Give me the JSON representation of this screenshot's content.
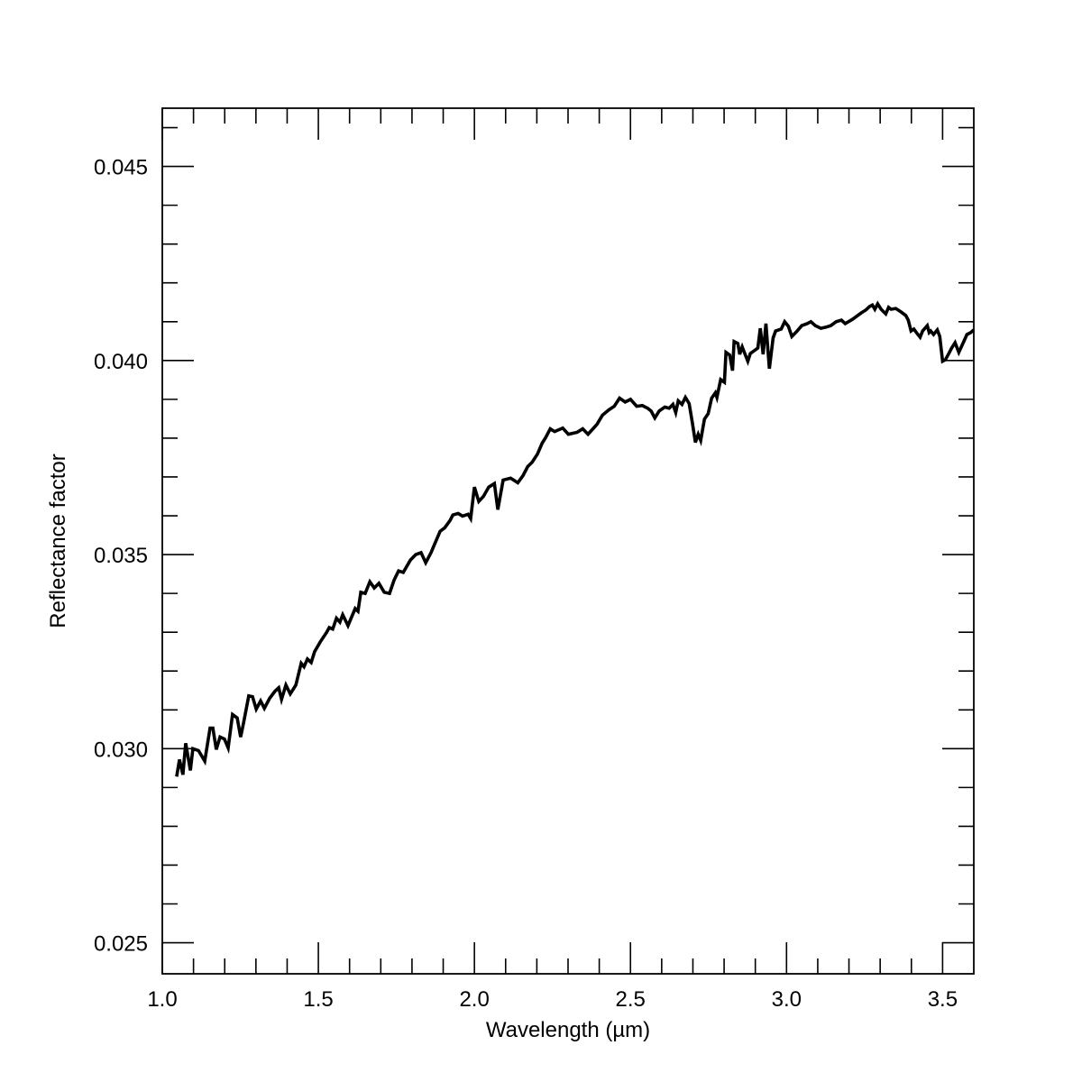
{
  "chart_data": {
    "type": "line",
    "xlabel": "Wavelength (µm)",
    "ylabel": "Reflectance factor",
    "color": "#000000",
    "xlim": [
      1.0,
      3.6
    ],
    "ylim": [
      0.0242,
      0.0465
    ],
    "xticks": [
      {
        "value": 1,
        "label": "1.0"
      },
      1.5,
      {
        "value": 2,
        "label": "2.0"
      },
      2.5,
      {
        "value": 3,
        "label": "3.0"
      },
      3.5
    ],
    "yticks": [
      0.025,
      {
        "value": 0.03,
        "label": "0.030"
      },
      0.035,
      {
        "value": 0.04,
        "label": "0.040"
      },
      0.045
    ],
    "xminorticks": [
      1.1,
      1.2,
      1.3,
      1.4,
      1.6,
      1.7,
      1.8,
      1.9,
      2.1,
      2.2,
      2.3,
      2.4,
      2.6,
      2.7,
      2.8,
      2.9,
      3.1,
      3.2,
      3.3,
      3.4
    ],
    "yminorticks": [
      0.026,
      0.027,
      0.028,
      0.029,
      0.031,
      0.032,
      0.033,
      0.034,
      0.036,
      0.037,
      0.038,
      0.039,
      0.041,
      0.042,
      0.043,
      0.044,
      0.046
    ],
    "x": [
      1.046,
      1.055,
      1.066,
      1.075,
      1.09,
      1.098,
      1.116,
      1.136,
      1.153,
      1.162,
      1.173,
      1.185,
      1.199,
      1.211,
      1.225,
      1.24,
      1.251,
      1.26,
      1.277,
      1.289,
      1.301,
      1.315,
      1.327,
      1.344,
      1.361,
      1.373,
      1.382,
      1.396,
      1.41,
      1.428,
      1.445,
      1.454,
      1.465,
      1.477,
      1.488,
      1.506,
      1.526,
      1.535,
      1.546,
      1.558,
      1.569,
      1.578,
      1.595,
      1.618,
      1.627,
      1.636,
      1.65,
      1.665,
      1.679,
      1.694,
      1.711,
      1.728,
      1.743,
      1.757,
      1.772,
      1.795,
      1.812,
      1.829,
      1.844,
      1.861,
      1.873,
      1.89,
      1.905,
      1.922,
      1.931,
      1.948,
      1.962,
      1.98,
      1.988,
      2.0,
      2.014,
      2.029,
      2.046,
      2.064,
      2.075,
      2.092,
      2.116,
      2.139,
      2.156,
      2.171,
      2.185,
      2.202,
      2.217,
      2.228,
      2.243,
      2.257,
      2.283,
      2.301,
      2.329,
      2.347,
      2.364,
      2.382,
      2.393,
      2.41,
      2.431,
      2.448,
      2.465,
      2.483,
      2.5,
      2.52,
      2.538,
      2.555,
      2.566,
      2.578,
      2.592,
      2.61,
      2.624,
      2.636,
      2.645,
      2.653,
      2.665,
      2.676,
      2.688,
      2.699,
      2.708,
      2.717,
      2.725,
      2.737,
      2.749,
      2.76,
      2.772,
      2.777,
      2.789,
      2.801,
      2.806,
      2.818,
      2.827,
      2.832,
      2.844,
      2.85,
      2.858,
      2.876,
      2.884,
      2.896,
      2.908,
      2.916,
      2.925,
      2.934,
      2.945,
      2.957,
      2.965,
      2.983,
      2.994,
      3.006,
      3.017,
      3.032,
      3.049,
      3.066,
      3.078,
      3.092,
      3.11,
      3.127,
      3.142,
      3.159,
      3.176,
      3.188,
      3.211,
      3.24,
      3.254,
      3.266,
      3.275,
      3.283,
      3.292,
      3.303,
      3.318,
      3.327,
      3.335,
      3.35,
      3.367,
      3.382,
      3.39,
      3.399,
      3.408,
      3.416,
      3.428,
      3.436,
      3.451,
      3.457,
      3.462,
      3.471,
      3.483,
      3.491,
      3.5,
      3.509,
      3.52,
      3.529,
      3.54,
      3.552,
      3.564,
      3.578,
      3.59,
      3.6
    ],
    "values": [
      0.02928,
      0.02972,
      0.02933,
      0.03014,
      0.02944,
      0.03,
      0.02995,
      0.02968,
      0.03053,
      0.03053,
      0.02998,
      0.0303,
      0.03025,
      0.03002,
      0.03088,
      0.03079,
      0.0303,
      0.03065,
      0.03136,
      0.03134,
      0.03102,
      0.03123,
      0.03104,
      0.0313,
      0.03148,
      0.03157,
      0.03127,
      0.03164,
      0.03141,
      0.03164,
      0.0322,
      0.03211,
      0.03231,
      0.03222,
      0.0325,
      0.03275,
      0.03299,
      0.03312,
      0.03308,
      0.03336,
      0.03326,
      0.03345,
      0.03317,
      0.03361,
      0.03354,
      0.03403,
      0.034,
      0.0343,
      0.03414,
      0.03426,
      0.03403,
      0.034,
      0.03435,
      0.03458,
      0.03454,
      0.03486,
      0.035,
      0.03505,
      0.03479,
      0.03505,
      0.03528,
      0.0356,
      0.03569,
      0.03588,
      0.03602,
      0.03606,
      0.03599,
      0.03604,
      0.03593,
      0.03674,
      0.03637,
      0.0365,
      0.03674,
      0.03683,
      0.03616,
      0.03692,
      0.03697,
      0.03685,
      0.03704,
      0.03727,
      0.03738,
      0.03759,
      0.03787,
      0.03801,
      0.03824,
      0.03817,
      0.03826,
      0.0381,
      0.03815,
      0.03824,
      0.0381,
      0.03826,
      0.03836,
      0.03859,
      0.03873,
      0.03882,
      0.03903,
      0.03893,
      0.039,
      0.03882,
      0.03884,
      0.03877,
      0.0387,
      0.03852,
      0.0387,
      0.0388,
      0.03877,
      0.03887,
      0.03866,
      0.03896,
      0.03887,
      0.03905,
      0.03889,
      0.03836,
      0.03789,
      0.0381,
      0.03794,
      0.03849,
      0.03863,
      0.03903,
      0.03917,
      0.03905,
      0.03951,
      0.03944,
      0.04021,
      0.04014,
      0.03974,
      0.04049,
      0.04044,
      0.04016,
      0.04035,
      0.03998,
      0.04018,
      0.04025,
      0.04032,
      0.04083,
      0.04016,
      0.04095,
      0.03979,
      0.04058,
      0.04076,
      0.04081,
      0.041,
      0.04088,
      0.04062,
      0.04074,
      0.0409,
      0.04095,
      0.041,
      0.0409,
      0.04083,
      0.04086,
      0.0409,
      0.041,
      0.04104,
      0.04095,
      0.04106,
      0.04123,
      0.0413,
      0.04139,
      0.04143,
      0.04132,
      0.04146,
      0.04132,
      0.0412,
      0.04137,
      0.04132,
      0.04134,
      0.04125,
      0.04116,
      0.04104,
      0.04076,
      0.04081,
      0.04072,
      0.0406,
      0.04076,
      0.0409,
      0.04072,
      0.04076,
      0.04067,
      0.04079,
      0.04062,
      0.03998,
      0.04002,
      0.04018,
      0.04032,
      0.04046,
      0.04021,
      0.04042,
      0.04067,
      0.04072,
      0.04079
    ]
  }
}
